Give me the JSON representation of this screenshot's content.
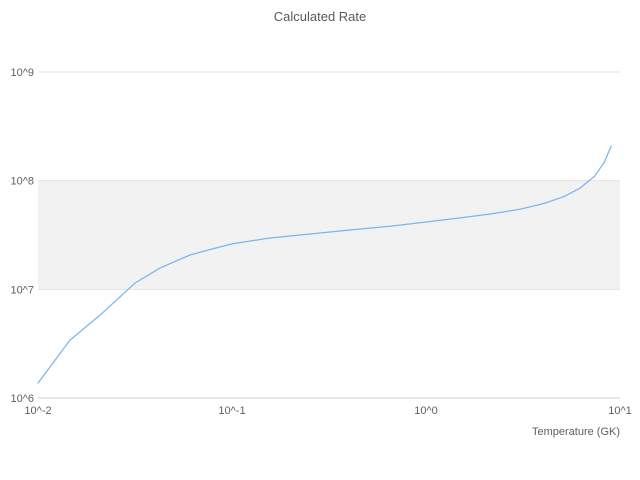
{
  "chart": {
    "title": "Calculated Rate",
    "x_axis_title": "Temperature (GK)",
    "x_tick_labels": [
      "10^-2",
      "10^-1",
      "10^0",
      "10^1"
    ],
    "y_tick_labels": [
      "10^6",
      "10^7",
      "10^8",
      "10^9"
    ],
    "colors": {
      "line": "#7cb5ec",
      "grid": "#e6e6e6",
      "band": "#f2f2f2",
      "axis_line": "#d0d0d0",
      "tick_text": "#606060",
      "title_text": "#595959"
    }
  },
  "chart_data": {
    "type": "line",
    "title": "Calculated Rate",
    "xlabel": "Temperature (GK)",
    "ylabel": "",
    "x_scale": "log",
    "y_scale": "log",
    "xlim": [
      0.01,
      10
    ],
    "ylim": [
      1000000,
      1000000000
    ],
    "x_tick_values": [
      0.01,
      0.1,
      1,
      10
    ],
    "x_tick_labels": [
      "10^-2",
      "10^-1",
      "10^0",
      "10^1"
    ],
    "y_tick_values": [
      1000000,
      10000000,
      100000000,
      1000000000
    ],
    "y_tick_labels": [
      "10^6",
      "10^7",
      "10^8",
      "10^9"
    ],
    "grid": "horizontal",
    "legend": "none",
    "plot_band": {
      "from": 10000000,
      "to": 100000000,
      "color": "#f2f2f2"
    },
    "series": [
      {
        "name": "Calculated Rate",
        "color": "#7cb5ec",
        "x": [
          0.01,
          0.0146,
          0.0209,
          0.0316,
          0.0425,
          0.0607,
          0.0816,
          0.1,
          0.157,
          0.224,
          0.32,
          0.457,
          0.653,
          1.0,
          1.5,
          2.14,
          3.05,
          4.1,
          5.2,
          6.2,
          7.4,
          8.3,
          9.0
        ],
        "y": [
          1370000.0,
          3400000.0,
          5800000.0,
          11400000.0,
          15700000.0,
          20700000.0,
          23900000.0,
          26200000.0,
          29700000.0,
          31600000.0,
          33700000.0,
          35900000.0,
          38100000.0,
          41700000.0,
          45400000.0,
          49400000.0,
          54600000.0,
          62000000.0,
          72000000.0,
          85000000.0,
          110000000.0,
          148000000.0,
          208000000.0
        ]
      }
    ]
  }
}
